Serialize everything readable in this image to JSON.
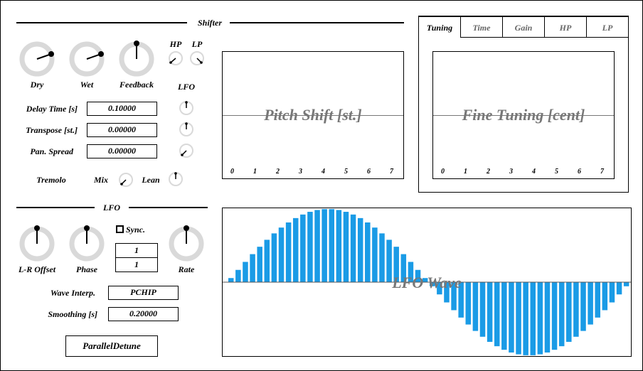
{
  "shifter": {
    "title": "Shifter",
    "knobs": {
      "dry": "Dry",
      "wet": "Wet",
      "feedback": "Feedback"
    },
    "hp": "HP",
    "lp": "LP",
    "lfo": "LFO",
    "params": [
      {
        "label": "Delay Time [s]",
        "value": "0.10000"
      },
      {
        "label": "Transpose [st.]",
        "value": "0.00000"
      },
      {
        "label": "Pan. Spread",
        "value": "0.00000"
      }
    ],
    "tremolo": "Tremolo",
    "mix": "Mix",
    "lean": "Lean"
  },
  "pitch_panel": {
    "title": "Pitch Shift [st.]",
    "ticks": [
      "0",
      "1",
      "2",
      "3",
      "4",
      "5",
      "6",
      "7"
    ]
  },
  "tuning_panel": {
    "tabs": [
      "Tuning",
      "Time",
      "Gain",
      "HP",
      "LP"
    ],
    "active_tab": "Tuning",
    "title": "Fine Tuning [cent]",
    "ticks": [
      "0",
      "1",
      "2",
      "3",
      "4",
      "5",
      "6",
      "7"
    ]
  },
  "lfo": {
    "title": "LFO",
    "knobs": {
      "lr_offset": "L-R Offset",
      "phase": "Phase",
      "rate": "Rate"
    },
    "sync_label": "Sync.",
    "numerator": "1",
    "denominator": "1",
    "wave_interp_label": "Wave Interp.",
    "wave_interp_value": "PCHIP",
    "smoothing_label": "Smoothing [s]",
    "smoothing_value": "0.20000"
  },
  "preset_button": "ParallelDetune",
  "lfo_wave": {
    "title": "LFO Wave",
    "bar_color": "#1a9be6"
  }
}
